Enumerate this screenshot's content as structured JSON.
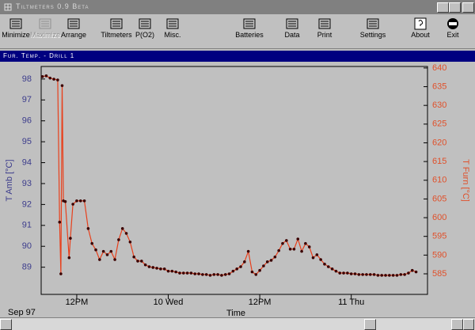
{
  "window": {
    "title": "Tiltmeters 0.9 Beta"
  },
  "toolbar": {
    "buttons": [
      "Minimize",
      "Maximize",
      "Arrange",
      "Tiltmeters",
      "P(O2)",
      "Misc.",
      "Batteries",
      "Data",
      "Print",
      "Settings",
      "About",
      "Exit"
    ]
  },
  "subwindow": {
    "title": "Fur. Temp. - Drill 1"
  },
  "chart_data": {
    "type": "line",
    "xlabel": "Time",
    "x_start_label": "Sep 97",
    "ylabel": "T Amb [°C]",
    "y2label": "T Furn [°C]",
    "xlim": [
      "1997-09-09T07:20",
      "1997-09-11T10:00"
    ],
    "xticks": [
      {
        "value": "1997-09-09T12:00",
        "label": "12PM"
      },
      {
        "value": "1997-09-10T00:00",
        "label": "10 Wed"
      },
      {
        "value": "1997-09-10T12:00",
        "label": "12PM"
      },
      {
        "value": "1997-09-11T00:00",
        "label": "11 Thu"
      }
    ],
    "ylim": [
      87.7,
      98.6
    ],
    "yticks": [
      89,
      90,
      91,
      92,
      93,
      94,
      95,
      96,
      97,
      98
    ],
    "y2lim": [
      579.5,
      640.4
    ],
    "y2ticks": [
      585,
      590,
      595,
      600,
      605,
      610,
      615,
      620,
      625,
      630,
      635,
      640
    ],
    "x": [
      "1997-09-09T07:30",
      "1997-09-09T08:00",
      "1997-09-09T08:30",
      "1997-09-09T09:00",
      "1997-09-09T09:30",
      "1997-09-09T09:45",
      "1997-09-09T09:55",
      "1997-09-09T10:05",
      "1997-09-09T10:15",
      "1997-09-09T10:30",
      "1997-09-09T11:00",
      "1997-09-09T11:10",
      "1997-09-09T11:30",
      "1997-09-09T12:00",
      "1997-09-09T12:30",
      "1997-09-09T13:00",
      "1997-09-09T13:30",
      "1997-09-09T14:00",
      "1997-09-09T14:30",
      "1997-09-09T15:00",
      "1997-09-09T15:30",
      "1997-09-09T16:00",
      "1997-09-09T16:30",
      "1997-09-09T17:00",
      "1997-09-09T17:30",
      "1997-09-09T18:00",
      "1997-09-09T18:30",
      "1997-09-09T19:00",
      "1997-09-09T19:30",
      "1997-09-09T20:00",
      "1997-09-09T20:30",
      "1997-09-09T21:00",
      "1997-09-09T21:30",
      "1997-09-09T22:00",
      "1997-09-09T22:30",
      "1997-09-09T23:00",
      "1997-09-09T23:30",
      "1997-09-10T00:00",
      "1997-09-10T00:30",
      "1997-09-10T01:00",
      "1997-09-10T01:30",
      "1997-09-10T02:00",
      "1997-09-10T02:30",
      "1997-09-10T03:00",
      "1997-09-10T03:30",
      "1997-09-10T04:00",
      "1997-09-10T04:30",
      "1997-09-10T05:00",
      "1997-09-10T05:30",
      "1997-09-10T06:00",
      "1997-09-10T06:30",
      "1997-09-10T07:00",
      "1997-09-10T07:30",
      "1997-09-10T08:00",
      "1997-09-10T08:30",
      "1997-09-10T09:00",
      "1997-09-10T09:30",
      "1997-09-10T10:00",
      "1997-09-10T10:30",
      "1997-09-10T11:00",
      "1997-09-10T11:30",
      "1997-09-10T12:00",
      "1997-09-10T12:30",
      "1997-09-10T13:00",
      "1997-09-10T13:30",
      "1997-09-10T14:00",
      "1997-09-10T14:30",
      "1997-09-10T15:00",
      "1997-09-10T15:30",
      "1997-09-10T16:00",
      "1997-09-10T16:30",
      "1997-09-10T17:00",
      "1997-09-10T17:30",
      "1997-09-10T18:00",
      "1997-09-10T18:30",
      "1997-09-10T19:00",
      "1997-09-10T19:30",
      "1997-09-10T20:00",
      "1997-09-10T20:30",
      "1997-09-10T21:00",
      "1997-09-10T21:30",
      "1997-09-10T22:00",
      "1997-09-10T22:30",
      "1997-09-10T23:00",
      "1997-09-10T23:30",
      "1997-09-11T00:00",
      "1997-09-11T00:30",
      "1997-09-11T01:00",
      "1997-09-11T01:30",
      "1997-09-11T02:00",
      "1997-09-11T02:30",
      "1997-09-11T03:00",
      "1997-09-11T03:30",
      "1997-09-11T04:00",
      "1997-09-11T04:30",
      "1997-09-11T05:00",
      "1997-09-11T05:30",
      "1997-09-11T06:00",
      "1997-09-11T06:30",
      "1997-09-11T07:00",
      "1997-09-11T07:30",
      "1997-09-11T08:00",
      "1997-09-11T08:30"
    ],
    "series": [
      {
        "color": "#e8401c",
        "marker_color": "#3a0000",
        "axis": "y2",
        "values": [
          637.7,
          637.9,
          637.3,
          637.0,
          636.8,
          598.8,
          585.0,
          635.3,
          604.5,
          604.3,
          589.3,
          594.5,
          603.6,
          604.5,
          604.5,
          604.5,
          597.1,
          593.1,
          591.4,
          588.8,
          591.0,
          590.1,
          591.0,
          588.8,
          594.1,
          597.1,
          595.8,
          593.5,
          589.5,
          588.4,
          588.4,
          587.4,
          586.9,
          586.7,
          586.5,
          586.3,
          586.3,
          585.7,
          585.7,
          585.5,
          585.2,
          585.2,
          585.2,
          585.2,
          585.0,
          585.0,
          584.8,
          584.8,
          584.6,
          584.8,
          584.8,
          584.6,
          584.8,
          585.0,
          585.7,
          586.3,
          586.9,
          588.2,
          591.0,
          585.5,
          584.8,
          585.9,
          587.1,
          588.2,
          588.6,
          589.5,
          591.2,
          593.1,
          593.9,
          591.6,
          591.6,
          594.3,
          591.0,
          593.1,
          592.2,
          589.3,
          590.1,
          588.8,
          587.6,
          586.9,
          586.3,
          585.7,
          585.2,
          585.2,
          585.2,
          585.0,
          585.0,
          584.8,
          584.8,
          584.8,
          584.8,
          584.8,
          584.6,
          584.6,
          584.6,
          584.6,
          584.6,
          584.6,
          584.8,
          584.8,
          585.2,
          585.9,
          585.5
        ]
      }
    ],
    "axis_colors": {
      "y": "#3c3c8c",
      "y2": "#e0502a"
    }
  }
}
